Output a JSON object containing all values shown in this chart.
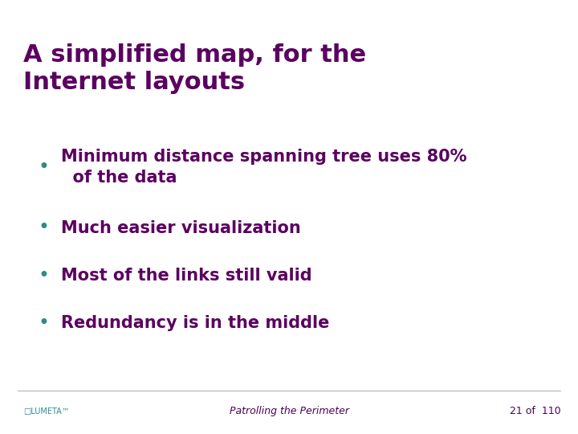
{
  "title_line1": "A simplified map, for the",
  "title_line2": "Internet layouts",
  "title_color": "#5B0060",
  "bullet_color": "#2E8B8B",
  "bullet_text_color": "#5B0060",
  "bullets": [
    "Minimum distance spanning tree uses 80%\n  of the data",
    "Much easier visualization",
    "Most of the links still valid",
    "Redundancy is in the middle"
  ],
  "footer_center": "Patrolling the Perimeter",
  "footer_right": "21 of  110",
  "footer_color": "#4B0055",
  "background_color": "#FFFFFF",
  "title_fontsize": 22,
  "bullet_fontsize": 15,
  "footer_fontsize": 9
}
